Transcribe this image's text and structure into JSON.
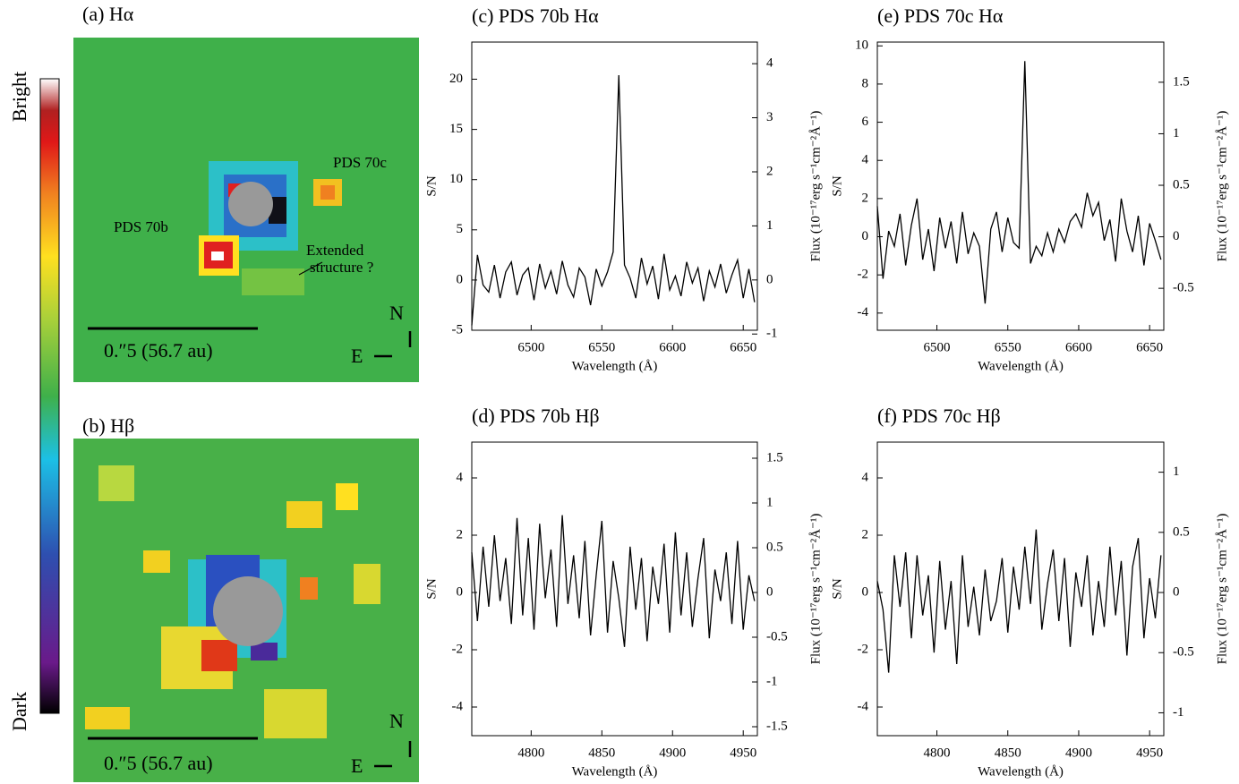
{
  "figure": {
    "colorbar": {
      "top": "Bright",
      "bottom": "Dark"
    },
    "images": [
      {
        "title": "(a) Hα",
        "labels": [
          "PDS 70c",
          "PDS 70b",
          "Extended",
          "structure ?"
        ],
        "scale": "0.″5 (56.7 au)",
        "north": "N",
        "east": "E"
      },
      {
        "title": "(b) Hβ",
        "scale": "0.″5 (56.7 au)",
        "north": "N",
        "east": "E"
      }
    ]
  },
  "chart_data": [
    {
      "type": "line",
      "title": "(c) PDS 70b Hα",
      "x_label": "Wavelength (Å)",
      "y_label": "S/N",
      "y2_label": "Flux (10⁻¹⁷erg s⁻¹cm⁻²Å⁻¹)",
      "x": [
        6458,
        6462,
        6466,
        6470,
        6474,
        6478,
        6482,
        6486,
        6490,
        6494,
        6498,
        6502,
        6506,
        6510,
        6514,
        6518,
        6522,
        6526,
        6530,
        6534,
        6538,
        6542,
        6546,
        6550,
        6554,
        6558,
        6562,
        6566,
        6570,
        6574,
        6578,
        6582,
        6586,
        6590,
        6594,
        6598,
        6602,
        6606,
        6610,
        6614,
        6618,
        6622,
        6626,
        6630,
        6634,
        6638,
        6642,
        6646,
        6650,
        6654,
        6658
      ],
      "series": [
        {
          "color": "#000000",
          "values": [
            -4.5,
            2.5,
            -0.5,
            -1.2,
            1.5,
            -1.8,
            0.8,
            1.8,
            -1.5,
            0.5,
            1.2,
            -2,
            1.6,
            -0.8,
            0.9,
            -1.4,
            1.9,
            -0.5,
            -1.7,
            1.2,
            0.3,
            -2.5,
            1.1,
            -0.6,
            0.8,
            2.8,
            20.4,
            1.5,
            0.2,
            -1.8,
            2.2,
            -0.4,
            1.4,
            -1.9,
            2.6,
            -1,
            0.4,
            -1.6,
            1.8,
            -0.3,
            1.2,
            -2.1,
            0.9,
            -0.7,
            1.6,
            -1.3,
            0.5,
            2,
            -1.8,
            1.1,
            -2.2
          ]
        }
      ],
      "xlim": [
        6458,
        6660
      ],
      "xticks": [
        6500,
        6550,
        6600,
        6650
      ],
      "ylim": [
        -5,
        23.7
      ],
      "yticks": [
        -5,
        0,
        5,
        10,
        15,
        20
      ],
      "y2lim": [
        -0.93,
        4.4
      ],
      "y2ticks": [
        -1,
        0,
        1,
        2,
        3,
        4
      ]
    },
    {
      "type": "line",
      "title": "(e) PDS 70c Hα",
      "x_label": "Wavelength (Å)",
      "y_label": "S/N",
      "y2_label": "Flux (10⁻¹⁷erg s⁻¹cm⁻²Å⁻¹)",
      "x": [
        6458,
        6462,
        6466,
        6470,
        6474,
        6478,
        6482,
        6486,
        6490,
        6494,
        6498,
        6502,
        6506,
        6510,
        6514,
        6518,
        6522,
        6526,
        6530,
        6534,
        6538,
        6542,
        6546,
        6550,
        6554,
        6558,
        6562,
        6566,
        6570,
        6574,
        6578,
        6582,
        6586,
        6590,
        6594,
        6598,
        6602,
        6606,
        6610,
        6614,
        6618,
        6622,
        6626,
        6630,
        6634,
        6638,
        6642,
        6646,
        6650,
        6654,
        6658
      ],
      "series": [
        {
          "color": "#000000",
          "values": [
            1.6,
            -2.2,
            0.3,
            -0.5,
            1.2,
            -1.5,
            0.6,
            2,
            -1.2,
            0.4,
            -1.8,
            1,
            -0.6,
            0.8,
            -1.4,
            1.3,
            -0.9,
            0.2,
            -0.5,
            -3.5,
            0.4,
            1.3,
            -0.8,
            1,
            -0.3,
            -0.6,
            9.2,
            -1.4,
            -0.5,
            -1,
            0.2,
            -0.8,
            0.4,
            -0.3,
            0.8,
            1.2,
            0.5,
            2.3,
            1.1,
            1.8,
            -0.2,
            0.9,
            -1.3,
            2,
            0.3,
            -0.8,
            1.1,
            -1.5,
            0.7,
            -0.2,
            -1.2
          ]
        }
      ],
      "xlim": [
        6458,
        6660
      ],
      "xticks": [
        6500,
        6550,
        6600,
        6650
      ],
      "ylim": [
        -4.9,
        10.2
      ],
      "yticks": [
        -4,
        -2,
        0,
        2,
        4,
        6,
        8,
        10
      ],
      "y2lim": [
        -0.907,
        1.89
      ],
      "y2ticks": [
        -0.5,
        0,
        0.5,
        1,
        1.5
      ]
    },
    {
      "type": "line",
      "title": "(d) PDS 70b Hβ",
      "x_label": "Wavelength (Å)",
      "y_label": "S/N",
      "y2_label": "Flux (10⁻¹⁷erg s⁻¹cm⁻²Å⁻¹)",
      "x": [
        4758,
        4762,
        4766,
        4770,
        4774,
        4778,
        4782,
        4786,
        4790,
        4794,
        4798,
        4802,
        4806,
        4810,
        4814,
        4818,
        4822,
        4826,
        4830,
        4834,
        4838,
        4842,
        4846,
        4850,
        4854,
        4858,
        4862,
        4866,
        4870,
        4874,
        4878,
        4882,
        4886,
        4890,
        4894,
        4898,
        4902,
        4906,
        4910,
        4914,
        4918,
        4922,
        4926,
        4930,
        4934,
        4938,
        4942,
        4946,
        4950,
        4954,
        4958
      ],
      "series": [
        {
          "color": "#000000",
          "values": [
            1.4,
            -1,
            1.6,
            -0.5,
            2,
            -0.3,
            1.2,
            -1.1,
            2.6,
            -0.8,
            1.9,
            -1.3,
            2.4,
            -0.2,
            1.5,
            -1.2,
            2.7,
            -0.4,
            1.3,
            -0.9,
            1.8,
            -1.5,
            0.6,
            2.5,
            -1.4,
            1.1,
            -0.2,
            -1.9,
            1.6,
            -0.6,
            1.2,
            -1.7,
            0.9,
            -0.4,
            1.7,
            -1.4,
            2.1,
            -0.8,
            1.4,
            -1.2,
            0.5,
            1.9,
            -1.6,
            0.8,
            -0.3,
            1.4,
            -1.1,
            1.8,
            -1.3,
            0.6,
            -0.3
          ]
        }
      ],
      "xlim": [
        4758,
        4960
      ],
      "xticks": [
        4800,
        4850,
        4900,
        4950
      ],
      "ylim": [
        -5,
        5.25
      ],
      "yticks": [
        -4,
        -2,
        0,
        2,
        4
      ],
      "y2lim": [
        -1.6,
        1.68
      ],
      "y2ticks": [
        -1.5,
        -1,
        -0.5,
        0,
        0.5,
        1,
        1.5
      ]
    },
    {
      "type": "line",
      "title": "(f) PDS 70c Hβ",
      "x_label": "Wavelength (Å)",
      "y_label": "S/N",
      "y2_label": "Flux (10⁻¹⁷erg s⁻¹cm⁻²Å⁻¹)",
      "x": [
        4758,
        4762,
        4766,
        4770,
        4774,
        4778,
        4782,
        4786,
        4790,
        4794,
        4798,
        4802,
        4806,
        4810,
        4814,
        4818,
        4822,
        4826,
        4830,
        4834,
        4838,
        4842,
        4846,
        4850,
        4854,
        4858,
        4862,
        4866,
        4870,
        4874,
        4878,
        4882,
        4886,
        4890,
        4894,
        4898,
        4902,
        4906,
        4910,
        4914,
        4918,
        4922,
        4926,
        4930,
        4934,
        4938,
        4942,
        4946,
        4950,
        4954,
        4958
      ],
      "series": [
        {
          "color": "#000000",
          "values": [
            0.4,
            -0.6,
            -2.8,
            1.3,
            -0.5,
            1.4,
            -1.6,
            1.3,
            -0.8,
            0.6,
            -2.1,
            1.1,
            -1.3,
            0.4,
            -2.5,
            1.3,
            -1.2,
            0.2,
            -1.5,
            0.8,
            -1,
            -0.3,
            1.2,
            -1.4,
            0.9,
            -0.6,
            1.6,
            -0.4,
            2.2,
            -1.3,
            0.3,
            1.5,
            -1,
            1.2,
            -1.9,
            0.7,
            -0.5,
            1.3,
            -1.5,
            0.4,
            -1.2,
            1.6,
            -0.8,
            1.1,
            -2.2,
            0.9,
            1.9,
            -1.6,
            0.5,
            -0.9,
            1.3
          ]
        }
      ],
      "xlim": [
        4758,
        4960
      ],
      "xticks": [
        4800,
        4850,
        4900,
        4950
      ],
      "ylim": [
        -5,
        5.25
      ],
      "yticks": [
        -4,
        -2,
        0,
        2,
        4
      ],
      "y2lim": [
        -1.19,
        1.25
      ],
      "y2ticks": [
        -1,
        -0.5,
        0,
        0.5,
        1
      ]
    }
  ]
}
